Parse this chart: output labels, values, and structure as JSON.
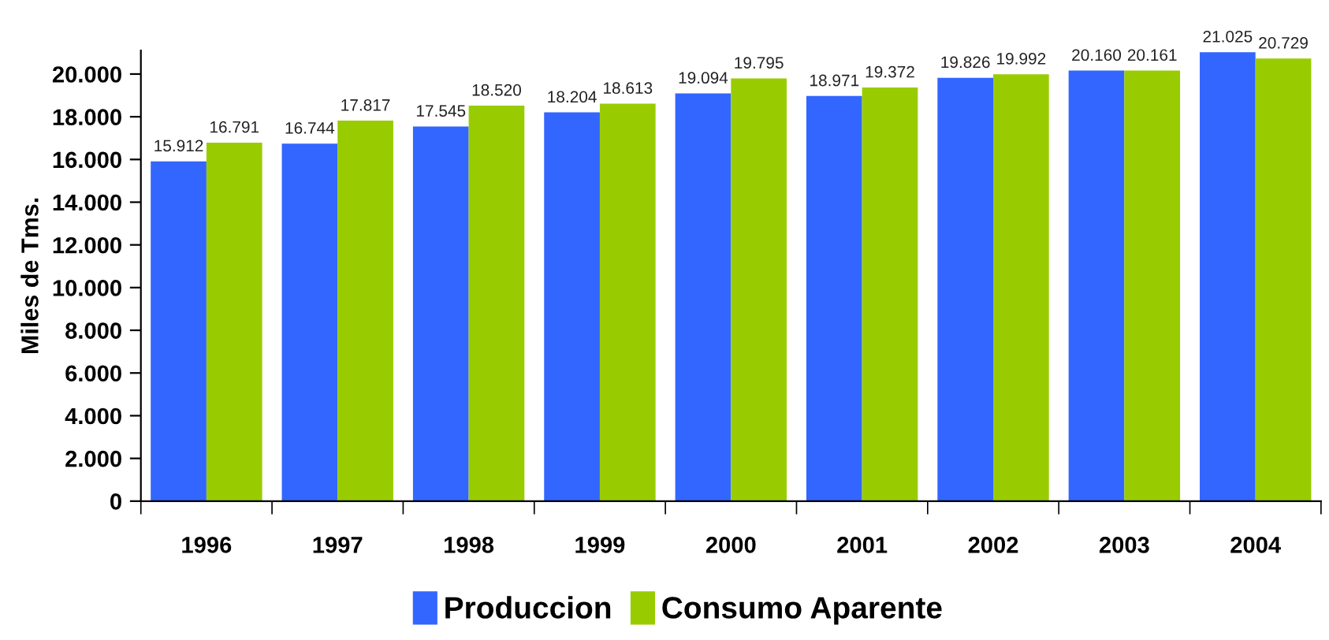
{
  "chart_data": {
    "type": "bar",
    "categories": [
      "1996",
      "1997",
      "1998",
      "1999",
      "2000",
      "2001",
      "2002",
      "2003",
      "2004"
    ],
    "series": [
      {
        "name": "Produccion",
        "color": "#3366ff",
        "values": [
          15912,
          16744,
          17545,
          18204,
          19094,
          18971,
          19826,
          20160,
          21025
        ],
        "value_labels": [
          "15.912",
          "16.744",
          "17.545",
          "18.204",
          "19.094",
          "18.971",
          "19.826",
          "20.160",
          "21.025"
        ]
      },
      {
        "name": "Consumo Aparente",
        "color": "#99cc00",
        "values": [
          16791,
          17817,
          18520,
          18613,
          19795,
          19372,
          19992,
          20161,
          20729
        ],
        "value_labels": [
          "16.791",
          "17.817",
          "18.520",
          "18.613",
          "19.795",
          "19.372",
          "19.992",
          "20.161",
          "20.729"
        ]
      }
    ],
    "ylabel": "Miles de Tms.",
    "ylim": [
      0,
      21100
    ],
    "yticks": [
      0,
      {
        "value": 2000,
        "label": "2.000"
      },
      {
        "value": 4000,
        "label": "4.000"
      },
      {
        "value": 6000,
        "label": "6.000"
      },
      {
        "value": 8000,
        "label": "8.000"
      },
      {
        "value": 10000,
        "label": "10.000"
      },
      {
        "value": 12000,
        "label": "12.000"
      },
      {
        "value": 14000,
        "label": "14.000"
      },
      {
        "value": 16000,
        "label": "16.000"
      },
      {
        "value": 18000,
        "label": "18.000"
      },
      {
        "value": 20000,
        "label": "20.000"
      }
    ],
    "legend": "bottom"
  }
}
